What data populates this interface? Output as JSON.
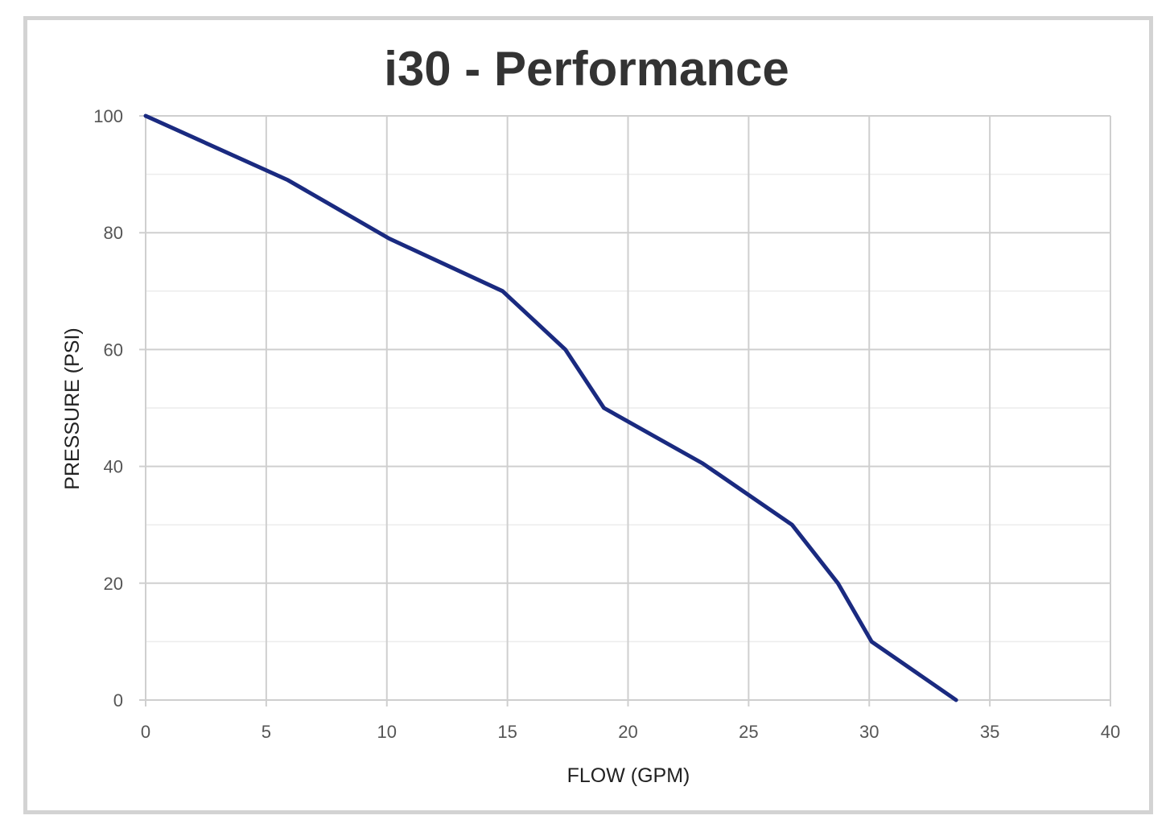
{
  "chart_data": {
    "type": "line",
    "title": "i30 - Performance",
    "xlabel": "FLOW (GPM)",
    "ylabel": "PRESSURE (PSI)",
    "xlim": [
      0,
      40
    ],
    "ylim": [
      0,
      100
    ],
    "x_ticks": [
      0,
      5,
      10,
      15,
      20,
      25,
      30,
      35,
      40
    ],
    "y_ticks": [
      0,
      20,
      40,
      60,
      80,
      100
    ],
    "grid": true,
    "series": [
      {
        "color": "#1a2a80",
        "x": [
          0,
          5.9,
          10.1,
          14.8,
          17.4,
          19.0,
          23.1,
          26.8,
          28.7,
          30.1,
          33.6
        ],
        "y": [
          100,
          89,
          79,
          70,
          60,
          50,
          40.5,
          30,
          20,
          10,
          0
        ]
      }
    ]
  }
}
